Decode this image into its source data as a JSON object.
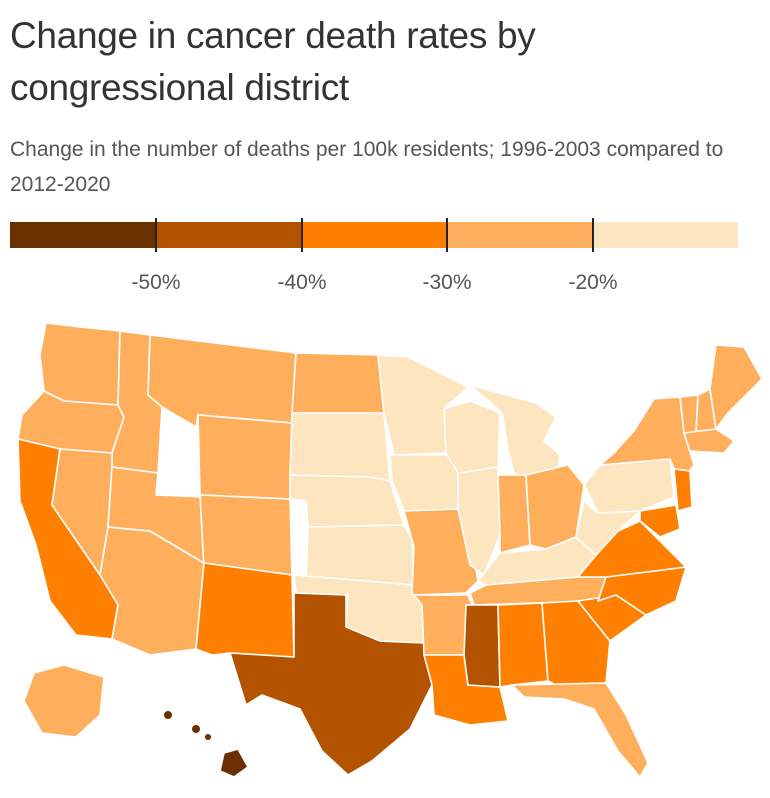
{
  "header": {
    "title": "Change in cancer death rates by congressional district",
    "subtitle": "Change in the number of deaths per 100k residents; 1996-2003 compared to 2012-2020"
  },
  "legend": {
    "bins": [
      {
        "color": "#6b3000"
      },
      {
        "color": "#b35300"
      },
      {
        "color": "#ff7f00"
      },
      {
        "color": "#ffae5c"
      },
      {
        "color": "#fde5bf"
      }
    ],
    "ticks": [
      "-50%",
      "-40%",
      "-30%",
      "-20%"
    ]
  },
  "map": {
    "colors": {
      "outline": "#ffffff",
      "darkest": "#6b3000",
      "dark": "#b35300",
      "mid": "#ff7f00",
      "light": "#ffae5c",
      "lightest": "#fde5bf"
    },
    "regions": [
      {
        "name": "Washington",
        "bin": "light"
      },
      {
        "name": "Oregon",
        "bin": "light"
      },
      {
        "name": "California",
        "bin": "mid"
      },
      {
        "name": "Idaho",
        "bin": "light"
      },
      {
        "name": "Nevada",
        "bin": "light"
      },
      {
        "name": "Arizona",
        "bin": "light"
      },
      {
        "name": "Utah",
        "bin": "light"
      },
      {
        "name": "Montana",
        "bin": "light"
      },
      {
        "name": "Wyoming",
        "bin": "light"
      },
      {
        "name": "Colorado",
        "bin": "light"
      },
      {
        "name": "New Mexico",
        "bin": "mid"
      },
      {
        "name": "North Dakota",
        "bin": "light"
      },
      {
        "name": "South Dakota",
        "bin": "lightest"
      },
      {
        "name": "Nebraska",
        "bin": "lightest"
      },
      {
        "name": "Kansas",
        "bin": "lightest"
      },
      {
        "name": "Oklahoma",
        "bin": "lightest"
      },
      {
        "name": "Texas",
        "bin": "dark"
      },
      {
        "name": "Minnesota",
        "bin": "lightest"
      },
      {
        "name": "Iowa",
        "bin": "lightest"
      },
      {
        "name": "Missouri",
        "bin": "light"
      },
      {
        "name": "Arkansas",
        "bin": "light"
      },
      {
        "name": "Louisiana",
        "bin": "mid"
      },
      {
        "name": "Wisconsin",
        "bin": "lightest"
      },
      {
        "name": "Michigan",
        "bin": "lightest"
      },
      {
        "name": "Illinois",
        "bin": "lightest"
      },
      {
        "name": "Indiana",
        "bin": "light"
      },
      {
        "name": "Ohio",
        "bin": "light"
      },
      {
        "name": "Kentucky",
        "bin": "lightest"
      },
      {
        "name": "Tennessee",
        "bin": "light"
      },
      {
        "name": "Mississippi",
        "bin": "dark"
      },
      {
        "name": "Alabama",
        "bin": "mid"
      },
      {
        "name": "Georgia",
        "bin": "mid"
      },
      {
        "name": "Florida",
        "bin": "light"
      },
      {
        "name": "South Carolina",
        "bin": "mid"
      },
      {
        "name": "North Carolina",
        "bin": "mid"
      },
      {
        "name": "Virginia",
        "bin": "mid"
      },
      {
        "name": "West Virginia",
        "bin": "lightest"
      },
      {
        "name": "Pennsylvania",
        "bin": "lightest"
      },
      {
        "name": "New York",
        "bin": "light"
      },
      {
        "name": "Vermont",
        "bin": "light"
      },
      {
        "name": "New Hampshire",
        "bin": "light"
      },
      {
        "name": "Maine",
        "bin": "light"
      },
      {
        "name": "Massachusetts",
        "bin": "light"
      },
      {
        "name": "New Jersey",
        "bin": "mid"
      },
      {
        "name": "Maryland",
        "bin": "mid"
      },
      {
        "name": "Alaska",
        "bin": "light"
      },
      {
        "name": "Hawaii",
        "bin": "darkest"
      }
    ]
  }
}
